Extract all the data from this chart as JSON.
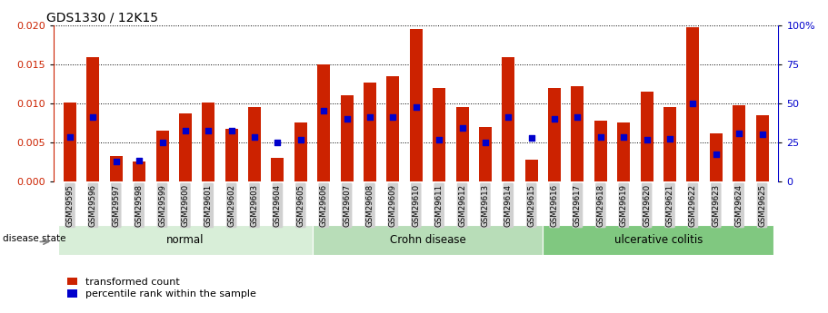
{
  "title": "GDS1330 / 12K15",
  "samples": [
    "GSM29595",
    "GSM29596",
    "GSM29597",
    "GSM29598",
    "GSM29599",
    "GSM29600",
    "GSM29601",
    "GSM29602",
    "GSM29603",
    "GSM29604",
    "GSM29605",
    "GSM29606",
    "GSM29607",
    "GSM29608",
    "GSM29609",
    "GSM29610",
    "GSM29611",
    "GSM29612",
    "GSM29613",
    "GSM29614",
    "GSM29615",
    "GSM29616",
    "GSM29617",
    "GSM29618",
    "GSM29619",
    "GSM29620",
    "GSM29621",
    "GSM29622",
    "GSM29623",
    "GSM29624",
    "GSM29625"
  ],
  "transformed_count": [
    0.0101,
    0.0159,
    0.0033,
    0.0026,
    0.0065,
    0.0087,
    0.0101,
    0.0067,
    0.0095,
    0.003,
    0.0075,
    0.015,
    0.011,
    0.0127,
    0.0135,
    0.0195,
    0.012,
    0.0095,
    0.007,
    0.0159,
    0.0028,
    0.012,
    0.0122,
    0.0078,
    0.0075,
    0.0115,
    0.0095,
    0.0197,
    0.0062,
    0.0098,
    0.0085
  ],
  "percentile_rank": [
    0.0057,
    0.0082,
    0.0026,
    0.0027,
    0.005,
    0.0065,
    0.0065,
    0.0065,
    0.0057,
    0.005,
    0.0053,
    0.0091,
    0.008,
    0.0083,
    0.0083,
    0.0095,
    0.0053,
    0.0068,
    0.005,
    0.0083,
    0.0056,
    0.008,
    0.0083,
    0.0057,
    0.0057,
    0.0053,
    0.0055,
    0.01,
    0.0035,
    0.0062,
    0.006
  ],
  "groups": [
    {
      "label": "normal",
      "start": 0,
      "end": 10
    },
    {
      "label": "Crohn disease",
      "start": 11,
      "end": 20
    },
    {
      "label": "ulcerative colitis",
      "start": 21,
      "end": 30
    }
  ],
  "group_colors": [
    "#d8eed8",
    "#b8ddb8",
    "#80c880"
  ],
  "bar_color": "#cc2200",
  "dot_color": "#0000cc",
  "bar_width": 0.55,
  "ylim_left": [
    0,
    0.02
  ],
  "ylim_right": [
    0,
    100
  ],
  "yticks_left": [
    0,
    0.005,
    0.01,
    0.015,
    0.02
  ],
  "yticks_right": [
    0,
    25,
    50,
    75,
    100
  ],
  "left_axis_color": "#cc2200",
  "right_axis_color": "#0000cc",
  "title_fontsize": 10,
  "disease_state_label": "disease state",
  "legend_labels": [
    "transformed count",
    "percentile rank within the sample"
  ],
  "legend_colors": [
    "#cc2200",
    "#0000cc"
  ]
}
